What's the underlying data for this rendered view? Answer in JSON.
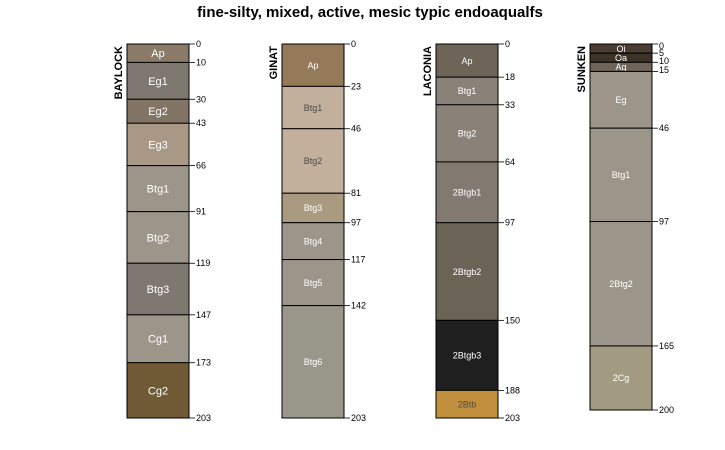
{
  "chart_data": {
    "type": "soil-profile",
    "title": "fine-silty, mixed, active, mesic typic endoaqualfs",
    "depth_unit": "cm",
    "profiles": [
      {
        "name": "BAYLOCK",
        "max_depth": 203,
        "horizons": [
          {
            "name": "Ap",
            "top": 0,
            "bottom": 10,
            "color": "#8a7a68",
            "label_color": "#ffffff"
          },
          {
            "name": "Eg1",
            "top": 10,
            "bottom": 30,
            "color": "#7f7870",
            "label_color": "#ffffff"
          },
          {
            "name": "Eg2",
            "top": 30,
            "bottom": 43,
            "color": "#827565",
            "label_color": "#ffffff"
          },
          {
            "name": "Eg3",
            "top": 43,
            "bottom": 66,
            "color": "#a89885",
            "label_color": "#ffffff"
          },
          {
            "name": "Btg1",
            "top": 66,
            "bottom": 91,
            "color": "#9c958a",
            "label_color": "#ffffff"
          },
          {
            "name": "Btg2",
            "top": 91,
            "bottom": 119,
            "color": "#9c958a",
            "label_color": "#ffffff"
          },
          {
            "name": "Btg3",
            "top": 119,
            "bottom": 147,
            "color": "#7f7870",
            "label_color": "#ffffff"
          },
          {
            "name": "Cg1",
            "top": 147,
            "bottom": 173,
            "color": "#9c958a",
            "label_color": "#ffffff"
          },
          {
            "name": "Cg2",
            "top": 173,
            "bottom": 203,
            "color": "#705a35",
            "label_color": "#ffffff"
          }
        ],
        "depth_labels": [
          "0",
          "10",
          "30",
          "43",
          "66",
          "91",
          "119",
          "147",
          "173",
          "203"
        ]
      },
      {
        "name": "GINAT",
        "max_depth": 203,
        "horizons": [
          {
            "name": "Ap",
            "top": 0,
            "bottom": 23,
            "color": "#957a5a",
            "label_color": "#ffffff"
          },
          {
            "name": "Btg1",
            "top": 23,
            "bottom": 46,
            "color": "#c2b09c",
            "label_color": "#4a4a4a"
          },
          {
            "name": "Btg2",
            "top": 46,
            "bottom": 81,
            "color": "#c2b09c",
            "label_color": "#4a4a4a"
          },
          {
            "name": "Btg3",
            "top": 81,
            "bottom": 97,
            "color": "#a99a80",
            "label_color": "#ffffff"
          },
          {
            "name": "Btg4",
            "top": 97,
            "bottom": 117,
            "color": "#9c958a",
            "label_color": "#ffffff"
          },
          {
            "name": "Btg5",
            "top": 117,
            "bottom": 142,
            "color": "#9c958a",
            "label_color": "#ffffff"
          },
          {
            "name": "Btg6",
            "top": 142,
            "bottom": 203,
            "color": "#99968a",
            "label_color": "#ffffff"
          }
        ],
        "depth_labels": [
          "0",
          "23",
          "46",
          "81",
          "97",
          "117",
          "142",
          "203"
        ]
      },
      {
        "name": "LACONIA",
        "max_depth": 203,
        "horizons": [
          {
            "name": "Ap",
            "top": 0,
            "bottom": 18,
            "color": "#6e6558",
            "label_color": "#ffffff"
          },
          {
            "name": "Btg1",
            "top": 18,
            "bottom": 33,
            "color": "#8a8278",
            "label_color": "#ffffff"
          },
          {
            "name": "Btg2",
            "top": 33,
            "bottom": 64,
            "color": "#8a8278",
            "label_color": "#ffffff"
          },
          {
            "name": "2Btgb1",
            "top": 64,
            "bottom": 97,
            "color": "#827a70",
            "label_color": "#ffffff"
          },
          {
            "name": "2Btgb2",
            "top": 97,
            "bottom": 150,
            "color": "#6b6356",
            "label_color": "#ffffff"
          },
          {
            "name": "2Btgb3",
            "top": 150,
            "bottom": 188,
            "color": "#1f1f1f",
            "label_color": "#ffffff"
          },
          {
            "name": "2Btb",
            "top": 188,
            "bottom": 203,
            "color": "#c0903c",
            "label_color": "#4a4a4a"
          }
        ],
        "depth_labels": [
          "0",
          "18",
          "33",
          "64",
          "97",
          "150",
          "188",
          "203"
        ]
      },
      {
        "name": "SUNKEN",
        "max_depth": 200,
        "horizons": [
          {
            "name": "Oi",
            "top": 0,
            "bottom": 5,
            "color": "#4a3c30",
            "label_color": "#ffffff"
          },
          {
            "name": "Oa",
            "top": 5,
            "bottom": 10,
            "color": "#3c3228",
            "label_color": "#ffffff"
          },
          {
            "name": "Ag",
            "top": 10,
            "bottom": 15,
            "color": "#6e6558",
            "label_color": "#ffffff"
          },
          {
            "name": "Eg",
            "top": 15,
            "bottom": 46,
            "color": "#9c958a",
            "label_color": "#ffffff"
          },
          {
            "name": "Btg1",
            "top": 46,
            "bottom": 97,
            "color": "#9c958a",
            "label_color": "#ffffff"
          },
          {
            "name": "2Btg2",
            "top": 97,
            "bottom": 165,
            "color": "#9c958a",
            "label_color": "#ffffff"
          },
          {
            "name": "2Cg",
            "top": 165,
            "bottom": 200,
            "color": "#a39a82",
            "label_color": "#ffffff"
          }
        ],
        "depth_labels": [
          "0",
          "5",
          "10",
          "15",
          "46",
          "97",
          "165",
          "200"
        ]
      }
    ]
  }
}
